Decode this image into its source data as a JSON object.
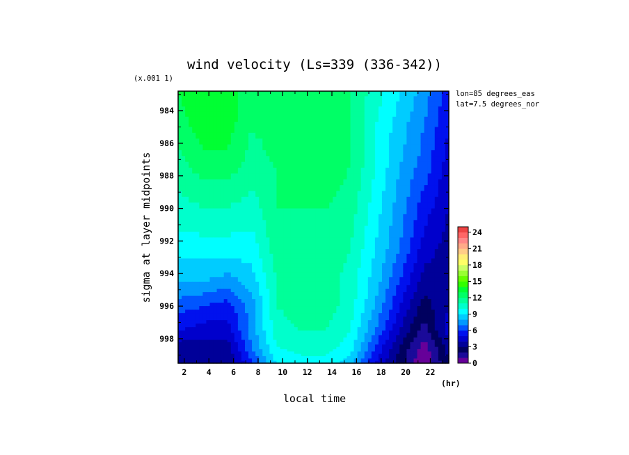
{
  "chart_data": {
    "type": "heatmap",
    "subtype": "filled-contour",
    "title": "wind velocity (Ls=339 (336-342))",
    "xlabel": "local time",
    "ylabel": "sigma at layer midpoints",
    "x_unit": "(hr)",
    "y_scale_note": "(x.001 1)",
    "annotations": [
      "lon=85 degrees_eas",
      "lat=7.5 degrees_nor"
    ],
    "xlim": [
      1.5,
      23.5
    ],
    "ylim": [
      999.5,
      982.8
    ],
    "x_ticks": [
      2,
      4,
      6,
      8,
      10,
      12,
      14,
      16,
      18,
      20,
      22
    ],
    "x_tick_labels": [
      "2",
      "4",
      "6",
      "8",
      "10",
      "12",
      "14",
      "16",
      "18",
      "20",
      "22"
    ],
    "y_ticks": [
      984,
      986,
      988,
      990,
      992,
      994,
      996,
      998
    ],
    "y_tick_labels": [
      "984",
      "986",
      "988",
      "990",
      "992",
      "994",
      "996",
      "998"
    ],
    "x": [
      1.5,
      3.5,
      5.5,
      7.5,
      9.5,
      11.5,
      13.5,
      15.5,
      17.5,
      19.5,
      21.5,
      23.5
    ],
    "y": [
      982.8,
      985,
      987.5,
      990,
      992.5,
      994.5,
      996,
      997.5,
      998.5,
      999.5
    ],
    "z": [
      [
        13.0,
        14.0,
        13.5,
        12.5,
        12.0,
        12.0,
        13.0,
        12.0,
        10.5,
        9.0,
        7.5,
        5.5
      ],
      [
        12.5,
        13.5,
        13.5,
        12.0,
        12.5,
        12.0,
        13.0,
        12.0,
        10.0,
        8.5,
        7.0,
        5.0
      ],
      [
        11.5,
        12.5,
        12.5,
        11.5,
        12.0,
        12.0,
        12.5,
        12.0,
        10.0,
        8.0,
        6.5,
        4.5
      ],
      [
        10.5,
        11.0,
        11.0,
        10.5,
        12.0,
        12.0,
        12.0,
        11.5,
        9.5,
        7.5,
        5.5,
        4.0
      ],
      [
        9.5,
        9.5,
        9.5,
        9.5,
        11.5,
        12.0,
        11.8,
        11.0,
        9.0,
        7.0,
        4.5,
        3.5
      ],
      [
        8.0,
        8.0,
        7.5,
        8.5,
        11.0,
        11.5,
        11.5,
        10.5,
        8.5,
        6.0,
        3.5,
        3.5
      ],
      [
        6.5,
        6.0,
        5.5,
        7.5,
        11.0,
        11.5,
        11.5,
        10.5,
        8.0,
        5.0,
        2.5,
        4.0
      ],
      [
        5.0,
        4.5,
        4.5,
        7.5,
        10.5,
        11.0,
        11.0,
        10.0,
        7.0,
        4.0,
        1.5,
        4.5
      ],
      [
        3.5,
        3.5,
        3.5,
        7.0,
        10.0,
        10.5,
        10.5,
        9.5,
        6.0,
        3.0,
        0.5,
        3.5
      ],
      [
        3.0,
        3.0,
        3.0,
        6.0,
        9.0,
        9.5,
        9.5,
        8.5,
        5.0,
        2.5,
        0.0,
        3.0
      ]
    ],
    "colorbar": {
      "ticks": [
        0,
        3,
        6,
        9,
        12,
        15,
        18,
        21,
        24
      ],
      "tick_labels": [
        "0",
        "3",
        "6",
        "9",
        "12",
        "15",
        "18",
        "21",
        "24"
      ],
      "min": 0,
      "max": 25,
      "step": 1,
      "colors": [
        "#660099",
        "#1a0a99",
        "#00005f",
        "#000099",
        "#0000cc",
        "#0011ee",
        "#0055ff",
        "#0099ff",
        "#00ccff",
        "#00ffff",
        "#00ffcc",
        "#00ff99",
        "#00ff66",
        "#00ff33",
        "#33ff00",
        "#66ff00",
        "#99ff33",
        "#ccff66",
        "#ffff66",
        "#ffee77",
        "#ffcc88",
        "#ffaa88",
        "#ff8888",
        "#ff6666",
        "#ee4444"
      ]
    }
  }
}
